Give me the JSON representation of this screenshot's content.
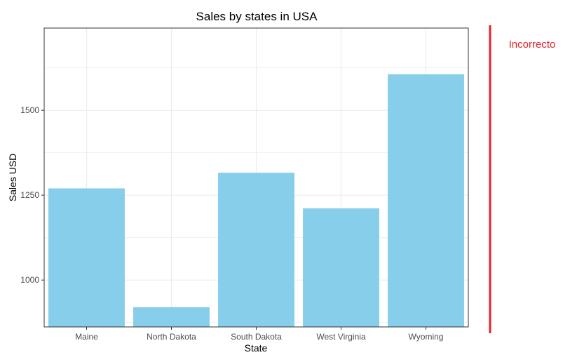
{
  "chart_data": {
    "type": "bar",
    "title": "Sales by states in USA",
    "xlabel": "State",
    "ylabel": "Sales USD",
    "categories": [
      "Maine",
      "North Dakota",
      "South Dakota",
      "West Virginia",
      "Wyoming"
    ],
    "values": [
      1270,
      920,
      1316,
      1211,
      1606
    ],
    "ylim": [
      862,
      1742
    ],
    "yticks": [
      1000,
      1250,
      1500
    ],
    "ytick_labels": [
      "1000",
      "1250",
      "1500"
    ],
    "bar_color": "#87CEEB",
    "grid": true,
    "legend": "none"
  },
  "annotation": {
    "text": "Incorrecto",
    "color": "#E8202A"
  }
}
